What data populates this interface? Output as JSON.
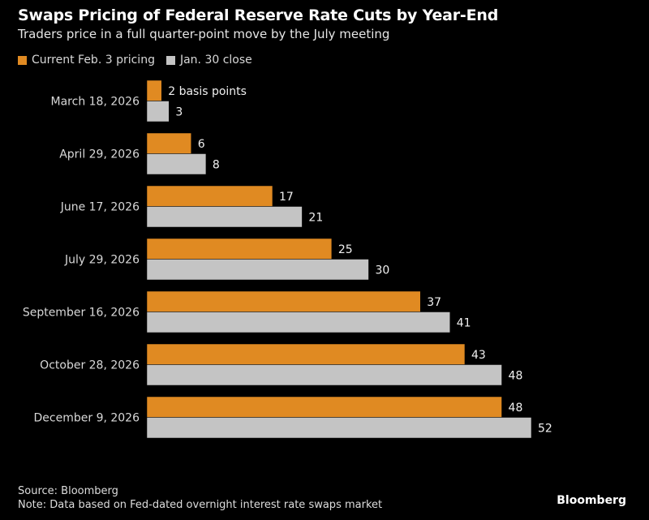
{
  "chart_data": {
    "type": "bar",
    "orientation": "horizontal",
    "title": "Swaps Pricing of Federal Reserve Rate Cuts by Year-End",
    "subtitle": "Traders price in a full quarter-point move by the July meeting",
    "categories": [
      "March 18, 2026",
      "April 29, 2026",
      "June 17, 2026",
      "July 29, 2026",
      "September 16, 2026",
      "October 28, 2026",
      "December 9, 2026"
    ],
    "series": [
      {
        "name": "Current Feb. 3 pricing",
        "color": "#e08a22",
        "values": [
          2,
          6,
          17,
          25,
          37,
          43,
          48
        ]
      },
      {
        "name": "Jan. 30 close",
        "color": "#c4c4c4",
        "values": [
          3,
          8,
          21,
          30,
          41,
          48,
          52
        ]
      }
    ],
    "first_label_suffix": " basis points",
    "xlim": [
      0,
      52
    ],
    "grid": false,
    "legend_position": "top-left"
  },
  "footer": {
    "source": "Source: Bloomberg",
    "note": "Note: Data based on Fed-dated overnight interest rate swaps market",
    "logo": "Bloomberg"
  }
}
